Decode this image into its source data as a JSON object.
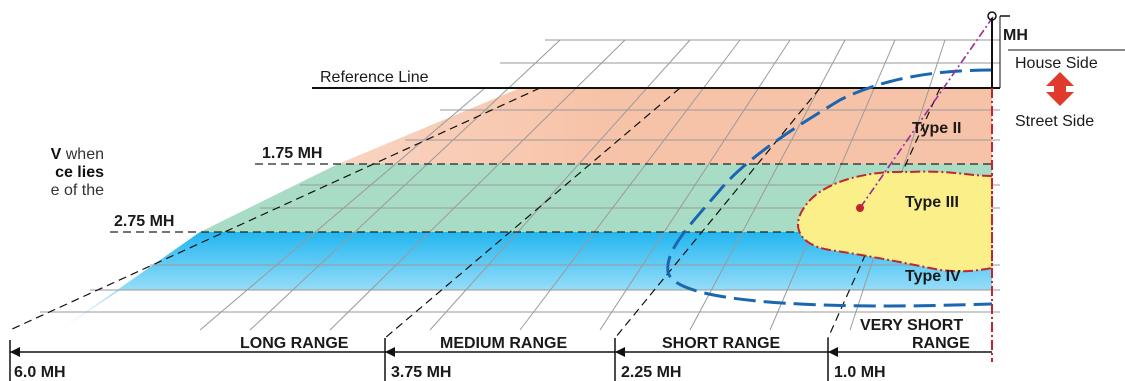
{
  "reference_line_label": "Reference Line",
  "mounting_height_label": "MH",
  "house_side_label": "House Side",
  "street_side_label": "Street Side",
  "distribution_types": [
    "Type II",
    "Type III",
    "Type IV"
  ],
  "width_markers": [
    "1.75 MH",
    "2.75 MH"
  ],
  "range_labels": {
    "long": "LONG RANGE",
    "medium": "MEDIUM RANGE",
    "short": "SHORT RANGE",
    "very_short_line1": "VERY SHORT",
    "very_short_line2": "RANGE"
  },
  "range_markers": [
    "6.0 MH",
    "3.75 MH",
    "2.25 MH",
    "1.0 MH"
  ],
  "side_text": {
    "line1_bold": "V",
    "line1_rest": " when",
    "line2_bold": "ce lies",
    "line3": "e of the"
  },
  "colors": {
    "type2_band": "#f7c3a8",
    "type3_band": "#a9dcc4",
    "type4_band": "#5cc8f0",
    "type3_pattern": "#fbef8a",
    "pattern_outline": "#c0262e",
    "dashed_curve": "#1a66b0",
    "house_street_arrow": "#e03a2c"
  }
}
